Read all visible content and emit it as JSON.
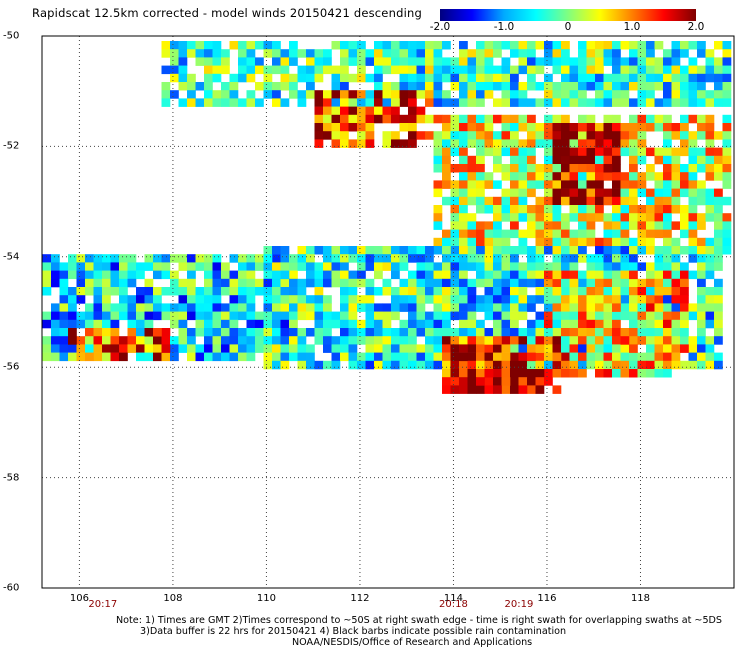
{
  "title": "Rapidscat 12.5km corrected - model winds 20150421 descending",
  "colorbar": {
    "stops": [
      "#00007f",
      "#0000ff",
      "#00aaff",
      "#00ffff",
      "#80ff80",
      "#ffff00",
      "#ff8000",
      "#ff0000",
      "#7f0000"
    ],
    "tick_labels": [
      "-2.0",
      "-1.0",
      "0",
      "1.0",
      "2.0"
    ],
    "tick_values": [
      -2,
      -1,
      0,
      1,
      2
    ]
  },
  "chart_data": {
    "type": "heatmap",
    "title": "Rapidscat 12.5km corrected - model winds 20150421 descending",
    "xlabel": "",
    "ylabel": "",
    "xlim": [
      105.2,
      120.0
    ],
    "ylim": [
      -60,
      -50
    ],
    "x_ticks": [
      106,
      108,
      110,
      112,
      114,
      116,
      118
    ],
    "x_tick_labels": [
      "106",
      "108",
      "110",
      "112",
      "114",
      "116",
      "118"
    ],
    "y_ticks": [
      -50,
      -52,
      -54,
      -56,
      -58,
      -60
    ],
    "y_tick_labels": [
      "-50",
      "-52",
      "-54",
      "-56",
      "-58",
      "-60"
    ],
    "value_range": [
      -2.0,
      2.0
    ],
    "grid": true,
    "time_markers": [
      {
        "x": 106.5,
        "label": "20:17"
      },
      {
        "x": 114.0,
        "label": "20:18"
      },
      {
        "x": 115.4,
        "label": "20:19"
      }
    ],
    "regions": [
      {
        "lon": [
          107.8,
          119.8
        ],
        "lat": [
          -51.3,
          -50.0
        ],
        "mean": -0.3
      },
      {
        "lon": [
          111.0,
          113.5
        ],
        "lat": [
          -52.0,
          -51.0
        ],
        "mean": 1.3
      },
      {
        "lon": [
          113.5,
          119.8
        ],
        "lat": [
          -54.0,
          -51.5
        ],
        "mean": 0.4
      },
      {
        "lon": [
          116.2,
          117.6
        ],
        "lat": [
          -53.0,
          -51.6
        ],
        "mean": 1.8
      },
      {
        "lon": [
          105.2,
          110.5
        ],
        "lat": [
          -55.8,
          -54.0
        ],
        "mean": -0.6
      },
      {
        "lon": [
          105.8,
          107.8
        ],
        "lat": [
          -55.8,
          -55.3
        ],
        "mean": 1.2
      },
      {
        "lon": [
          110.0,
          119.8
        ],
        "lat": [
          -56.0,
          -53.8
        ],
        "mean": -0.4
      },
      {
        "lon": [
          116.0,
          119.0
        ],
        "lat": [
          -56.0,
          -54.2
        ],
        "mean": 0.6
      },
      {
        "lon": [
          113.8,
          116.5
        ],
        "lat": [
          -56.5,
          -55.5
        ],
        "mean": 1.5
      },
      {
        "lon": [
          114.0,
          116.0
        ],
        "lat": [
          -56.4,
          -56.0
        ],
        "mean": 2.0
      }
    ]
  },
  "footer": {
    "line1": "Note: 1) Times are GMT 2)Times correspond to ~50S at right swath edge - time is right swath for overlapping swaths at ~5DS",
    "line2": "3)Data buffer is 22 hrs for 20150421 4) Black barbs indicate possible rain contamination",
    "line3": "NOAA/NESDIS/Office of Research and Applications"
  }
}
